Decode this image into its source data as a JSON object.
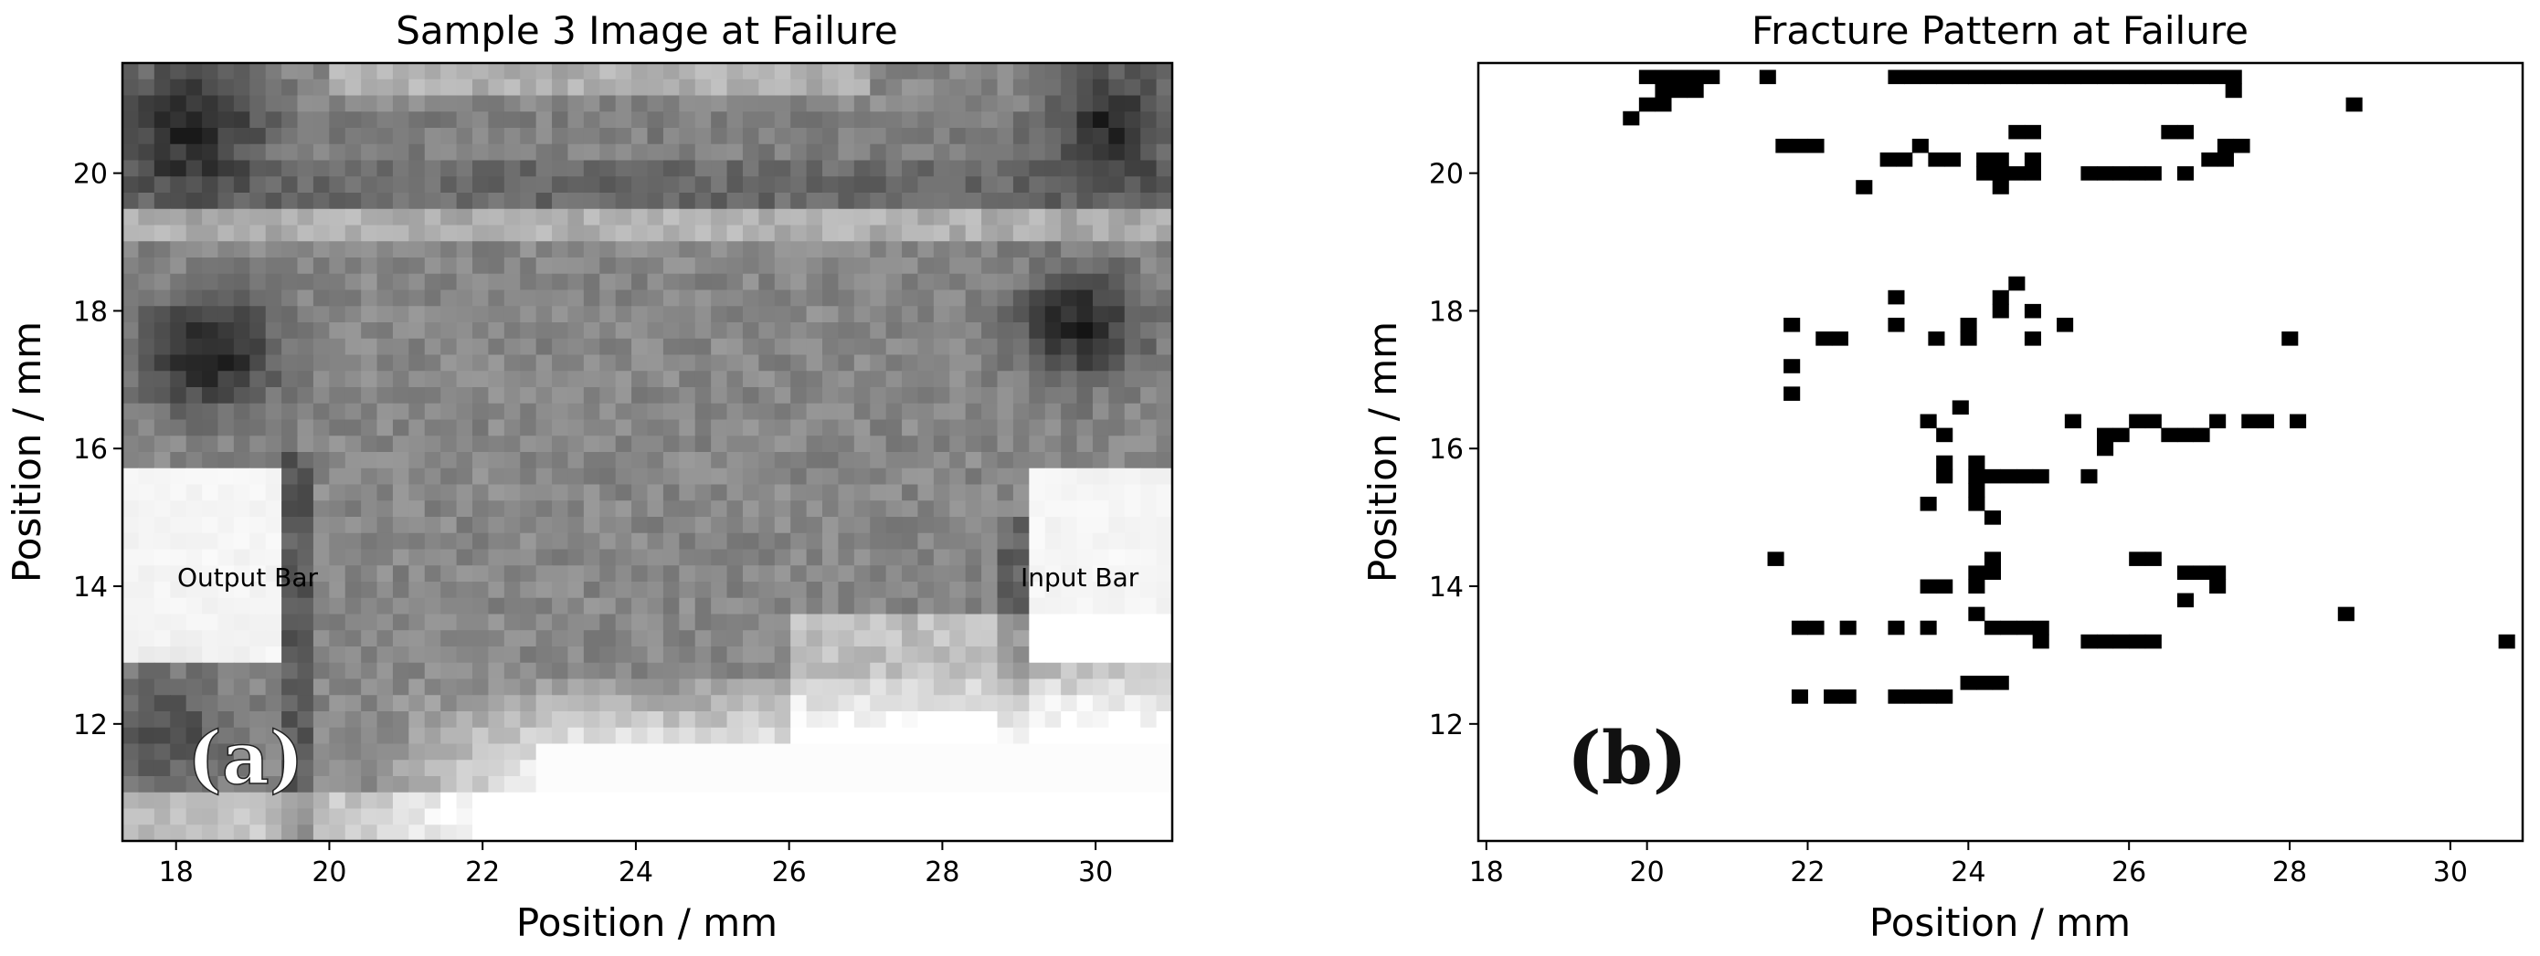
{
  "chart_data": [
    {
      "type": "heatmap",
      "panel_label": "(a)",
      "title": "Sample 3 Image at Failure",
      "xlabel": "Position / mm",
      "ylabel": "Position / mm",
      "xlim": [
        17.3,
        31.0
      ],
      "ylim": [
        10.3,
        21.6
      ],
      "xticks": [
        18,
        20,
        22,
        24,
        26,
        28,
        30
      ],
      "yticks": [
        12,
        14,
        16,
        18,
        20
      ],
      "annotations": [
        "Output Bar",
        "Input Bar"
      ],
      "colormap": "grayscale"
    },
    {
      "type": "heatmap",
      "panel_label": "(b)",
      "title": "Fracture Pattern at Failure",
      "xlabel": "Position / mm",
      "ylabel": "Position / mm",
      "xlim": [
        17.9,
        30.9
      ],
      "ylim": [
        10.3,
        21.6
      ],
      "xticks": [
        18,
        20,
        22,
        24,
        26,
        28,
        30
      ],
      "yticks": [
        12,
        14,
        16,
        18,
        20
      ],
      "cell_size_mm": [
        0.2,
        0.2
      ],
      "fracture_cells": [
        [
          20.0,
          21.4
        ],
        [
          20.2,
          21.4
        ],
        [
          20.4,
          21.4
        ],
        [
          20.6,
          21.4
        ],
        [
          20.8,
          21.4
        ],
        [
          20.2,
          21.2
        ],
        [
          20.4,
          21.2
        ],
        [
          20.6,
          21.2
        ],
        [
          20.0,
          21.0
        ],
        [
          20.2,
          21.0
        ],
        [
          19.8,
          20.8
        ],
        [
          21.5,
          21.4
        ],
        [
          23.1,
          21.4
        ],
        [
          23.3,
          21.4
        ],
        [
          23.5,
          21.4
        ],
        [
          23.7,
          21.4
        ],
        [
          23.9,
          21.4
        ],
        [
          24.1,
          21.4
        ],
        [
          24.3,
          21.4
        ],
        [
          24.5,
          21.4
        ],
        [
          24.7,
          21.4
        ],
        [
          24.9,
          21.4
        ],
        [
          25.1,
          21.4
        ],
        [
          25.3,
          21.4
        ],
        [
          25.5,
          21.4
        ],
        [
          25.7,
          21.4
        ],
        [
          25.9,
          21.4
        ],
        [
          26.1,
          21.4
        ],
        [
          26.3,
          21.4
        ],
        [
          26.5,
          21.4
        ],
        [
          26.7,
          21.4
        ],
        [
          26.9,
          21.4
        ],
        [
          27.1,
          21.4
        ],
        [
          27.3,
          21.4
        ],
        [
          27.3,
          21.2
        ],
        [
          28.8,
          21.0
        ],
        [
          21.7,
          20.4
        ],
        [
          21.9,
          20.4
        ],
        [
          22.1,
          20.4
        ],
        [
          23.4,
          20.4
        ],
        [
          23.0,
          20.2
        ],
        [
          23.2,
          20.2
        ],
        [
          23.6,
          20.2
        ],
        [
          23.8,
          20.2
        ],
        [
          24.2,
          20.2
        ],
        [
          24.4,
          20.2
        ],
        [
          24.8,
          20.2
        ],
        [
          24.8,
          20.0
        ],
        [
          24.8,
          20.6
        ],
        [
          24.6,
          20.6
        ],
        [
          24.2,
          20.0
        ],
        [
          24.4,
          20.0
        ],
        [
          24.6,
          20.0
        ],
        [
          24.4,
          19.8
        ],
        [
          22.7,
          19.8
        ],
        [
          25.5,
          20.0
        ],
        [
          25.7,
          20.0
        ],
        [
          25.9,
          20.0
        ],
        [
          26.1,
          20.0
        ],
        [
          26.3,
          20.0
        ],
        [
          26.7,
          20.0
        ],
        [
          26.5,
          20.6
        ],
        [
          26.7,
          20.6
        ],
        [
          27.0,
          20.2
        ],
        [
          27.2,
          20.2
        ],
        [
          27.2,
          20.4
        ],
        [
          27.4,
          20.4
        ],
        [
          24.6,
          18.4
        ],
        [
          24.4,
          18.2
        ],
        [
          24.4,
          18.0
        ],
        [
          24.0,
          17.8
        ],
        [
          24.0,
          17.6
        ],
        [
          24.8,
          18.0
        ],
        [
          24.8,
          17.6
        ],
        [
          25.2,
          17.8
        ],
        [
          23.1,
          18.2
        ],
        [
          23.1,
          17.8
        ],
        [
          23.6,
          17.6
        ],
        [
          22.2,
          17.6
        ],
        [
          22.4,
          17.6
        ],
        [
          21.8,
          17.8
        ],
        [
          21.8,
          17.2
        ],
        [
          21.8,
          16.8
        ],
        [
          28.0,
          17.6
        ],
        [
          23.9,
          16.6
        ],
        [
          23.5,
          16.4
        ],
        [
          23.7,
          16.2
        ],
        [
          23.7,
          15.8
        ],
        [
          23.7,
          15.6
        ],
        [
          24.1,
          15.8
        ],
        [
          24.1,
          15.6
        ],
        [
          24.3,
          15.6
        ],
        [
          24.5,
          15.6
        ],
        [
          24.7,
          15.6
        ],
        [
          24.9,
          15.6
        ],
        [
          24.1,
          15.4
        ],
        [
          24.1,
          15.2
        ],
        [
          24.3,
          15.0
        ],
        [
          23.5,
          15.2
        ],
        [
          25.3,
          16.4
        ],
        [
          25.5,
          15.6
        ],
        [
          25.7,
          16.2
        ],
        [
          25.7,
          16.0
        ],
        [
          25.9,
          16.2
        ],
        [
          26.1,
          16.4
        ],
        [
          26.3,
          16.4
        ],
        [
          26.5,
          16.2
        ],
        [
          26.7,
          16.2
        ],
        [
          26.9,
          16.2
        ],
        [
          27.1,
          16.4
        ],
        [
          27.5,
          16.4
        ],
        [
          27.7,
          16.4
        ],
        [
          28.1,
          16.4
        ],
        [
          21.6,
          14.4
        ],
        [
          24.3,
          14.4
        ],
        [
          24.3,
          14.2
        ],
        [
          24.1,
          14.2
        ],
        [
          24.1,
          14.0
        ],
        [
          23.5,
          14.0
        ],
        [
          23.7,
          14.0
        ],
        [
          24.1,
          13.6
        ],
        [
          26.1,
          14.4
        ],
        [
          26.3,
          14.4
        ],
        [
          26.7,
          14.2
        ],
        [
          26.9,
          14.2
        ],
        [
          27.1,
          14.2
        ],
        [
          27.1,
          14.0
        ],
        [
          26.7,
          13.8
        ],
        [
          28.7,
          13.6
        ],
        [
          21.9,
          13.4
        ],
        [
          22.1,
          13.4
        ],
        [
          22.5,
          13.4
        ],
        [
          23.1,
          13.4
        ],
        [
          23.5,
          13.4
        ],
        [
          24.3,
          13.4
        ],
        [
          24.5,
          13.4
        ],
        [
          24.7,
          13.4
        ],
        [
          24.9,
          13.4
        ],
        [
          24.9,
          13.2
        ],
        [
          25.5,
          13.2
        ],
        [
          25.7,
          13.2
        ],
        [
          25.9,
          13.2
        ],
        [
          26.1,
          13.2
        ],
        [
          26.3,
          13.2
        ],
        [
          30.7,
          13.2
        ],
        [
          21.9,
          12.4
        ],
        [
          22.3,
          12.4
        ],
        [
          22.5,
          12.4
        ],
        [
          23.1,
          12.4
        ],
        [
          23.3,
          12.4
        ],
        [
          23.5,
          12.4
        ],
        [
          23.7,
          12.4
        ],
        [
          24.0,
          12.6
        ],
        [
          24.2,
          12.6
        ],
        [
          24.4,
          12.6
        ]
      ]
    }
  ]
}
